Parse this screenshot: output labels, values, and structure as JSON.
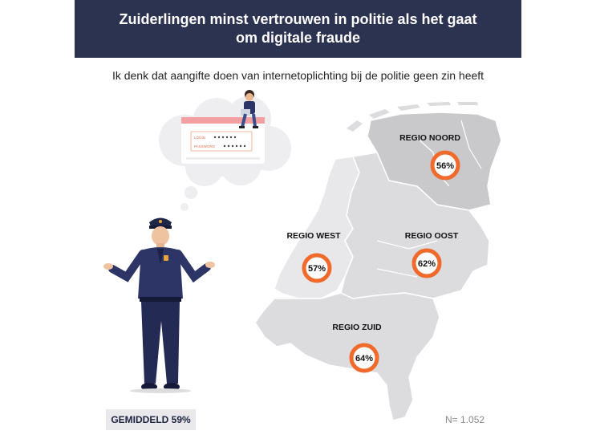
{
  "title": "Zuiderlingen minst vertrouwen in politie als het gaat om digitale fraude",
  "subtitle": "Ik denk dat aangifte doen van internetoplichting bij de politie geen zin heeft",
  "login": {
    "login_label": "LOGIN",
    "password_label": "PASSWORD"
  },
  "regions": [
    {
      "name": "REGIO NOORD",
      "value": "56%"
    },
    {
      "name": "REGIO WEST",
      "value": "57%"
    },
    {
      "name": "REGIO OOST",
      "value": "62%"
    },
    {
      "name": "REGIO ZUID",
      "value": "64%"
    }
  ],
  "average": "GEMIDDELD 59%",
  "sample": "N= 1.052",
  "colors": {
    "header_bg": "#2c3350",
    "region_noord": "#c9c9cc",
    "region_other": "#dcdcdf",
    "region_west": "#e8e8ea",
    "marker_ring": "#f06a2c",
    "police_uniform": "#2c3566"
  }
}
